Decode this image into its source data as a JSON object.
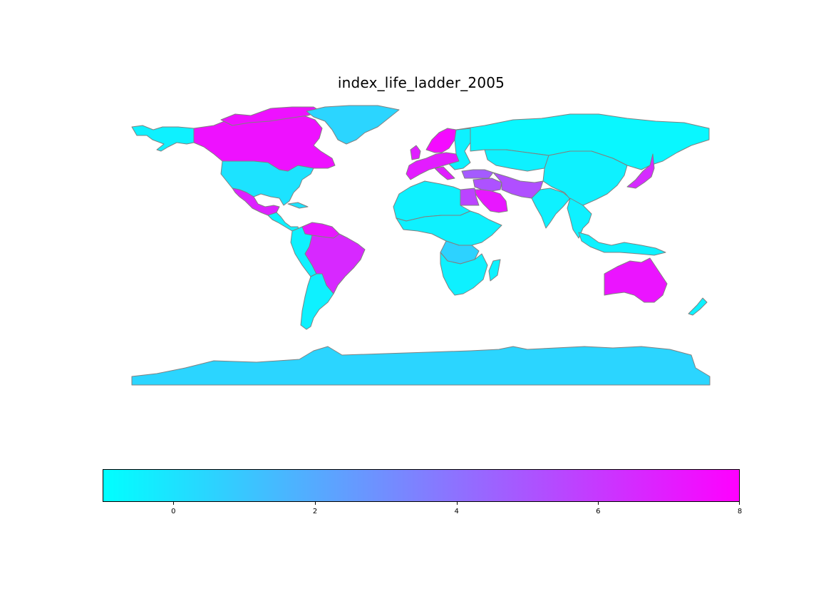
{
  "title": "index_life_ladder_2005",
  "colormap": {
    "low": "#00ffff",
    "high": "#ff00ff",
    "border": "#808080"
  },
  "legend": {
    "vmin": -1,
    "vmax": 8,
    "ticks": [
      {
        "value": 0,
        "label": "0"
      },
      {
        "value": 2,
        "label": "2"
      },
      {
        "value": 4,
        "label": "4"
      },
      {
        "value": 6,
        "label": "6"
      },
      {
        "value": 8,
        "label": "8"
      }
    ]
  },
  "regions": [
    {
      "id": "canada",
      "value": 7.4
    },
    {
      "id": "alaska",
      "value": -0.5
    },
    {
      "id": "usa",
      "value": 0.0
    },
    {
      "id": "mexico",
      "value": 6.8
    },
    {
      "id": "central-america",
      "value": -0.5
    },
    {
      "id": "caribbean",
      "value": 0.0
    },
    {
      "id": "greenland",
      "value": 0.5
    },
    {
      "id": "venezuela",
      "value": 7.2
    },
    {
      "id": "brazil",
      "value": 6.6
    },
    {
      "id": "andes",
      "value": -0.5
    },
    {
      "id": "southern-cone",
      "value": -0.5
    },
    {
      "id": "uk",
      "value": 6.9
    },
    {
      "id": "scandinavia",
      "value": 7.6
    },
    {
      "id": "western-europe",
      "value": 7.0
    },
    {
      "id": "italy",
      "value": 6.9
    },
    {
      "id": "eastern-europe",
      "value": -0.5
    },
    {
      "id": "turkey",
      "value": 4.8
    },
    {
      "id": "middle-east",
      "value": 5.1
    },
    {
      "id": "saudi-arabia",
      "value": 7.2
    },
    {
      "id": "egypt",
      "value": 5.6
    },
    {
      "id": "iran-pakistan",
      "value": 5.2
    },
    {
      "id": "russia",
      "value": -0.7
    },
    {
      "id": "kazakhstan",
      "value": -0.5
    },
    {
      "id": "china",
      "value": -0.5
    },
    {
      "id": "india",
      "value": -0.5
    },
    {
      "id": "southeast-asia",
      "value": -0.5
    },
    {
      "id": "indonesia",
      "value": -0.5
    },
    {
      "id": "japan",
      "value": 6.5
    },
    {
      "id": "north-africa",
      "value": -0.5
    },
    {
      "id": "sub-saharan-africa",
      "value": -0.5
    },
    {
      "id": "central-africa",
      "value": 0.6
    },
    {
      "id": "southern-africa",
      "value": -0.5
    },
    {
      "id": "madagascar",
      "value": -0.5
    },
    {
      "id": "australia",
      "value": 7.3
    },
    {
      "id": "new-zealand",
      "value": -0.5
    },
    {
      "id": "antarctica",
      "value": 0.5
    }
  ]
}
